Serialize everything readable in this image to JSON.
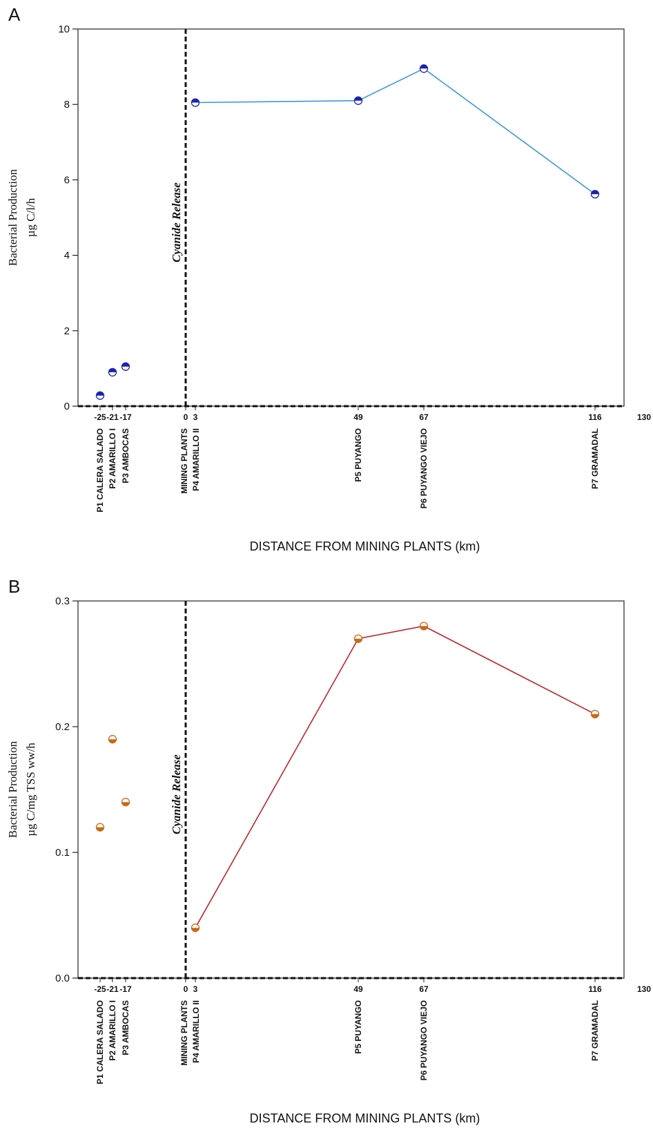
{
  "chart_data": [
    {
      "type": "line",
      "panel": "A",
      "ylabel": [
        "Bacterial Production",
        "µg C/l/h"
      ],
      "xlabel": "DISTANCE FROM MINING PLANTS (km)",
      "xlim": [
        -28,
        130
      ],
      "ylim": [
        0,
        10
      ],
      "xticks": [
        -25,
        -21,
        -17,
        0,
        3,
        49,
        67,
        116,
        130
      ],
      "xtick_labels": [
        "-25",
        "-21",
        "-17",
        "0",
        "3",
        "49",
        "67",
        "116",
        "130"
      ],
      "yticks": [
        0,
        2,
        4,
        6,
        8,
        10
      ],
      "ytick_labels": [
        "0",
        "2",
        "4",
        "6",
        "8",
        "10"
      ],
      "series": [
        {
          "points": [
            [
              -25,
              0.28
            ],
            [
              -21,
              0.9
            ],
            [
              -17,
              1.05
            ]
          ],
          "connected": false
        },
        {
          "points": [
            [
              3,
              8.05
            ],
            [
              49,
              8.1
            ],
            [
              67,
              8.95
            ],
            [
              116,
              5.62
            ]
          ],
          "connected": true
        }
      ],
      "colors": {
        "line": "#3a9ad9",
        "marker": "#1c23b0"
      },
      "annotation": "Cyanide Release",
      "vline_x": 0,
      "hline_y": 0
    },
    {
      "type": "line",
      "panel": "B",
      "ylabel": [
        "Bacterial Production",
        "µg C/mg TSS ww/h"
      ],
      "xlabel": "DISTANCE FROM MINING PLANTS (km)",
      "xlim": [
        -28,
        130
      ],
      "ylim": [
        0,
        0.3
      ],
      "xticks": [
        -25,
        -21,
        -17,
        0,
        3,
        49,
        67,
        116,
        130
      ],
      "xtick_labels": [
        "-25",
        "-21",
        "-17",
        "0",
        "3",
        "49",
        "67",
        "116",
        "130"
      ],
      "yticks": [
        0,
        0.1,
        0.2,
        0.3
      ],
      "ytick_labels": [
        "0.0",
        "0.1",
        "0.2",
        "0.3"
      ],
      "series": [
        {
          "points": [
            [
              -25,
              0.12
            ],
            [
              -21,
              0.19
            ],
            [
              -17,
              0.14
            ]
          ],
          "connected": false
        },
        {
          "points": [
            [
              3,
              0.04
            ],
            [
              49,
              0.27
            ],
            [
              67,
              0.28
            ],
            [
              116,
              0.21
            ]
          ],
          "connected": true
        }
      ],
      "colors": {
        "line": "#c0232e",
        "marker": "#c86a14"
      },
      "annotation": "Cyanide Release",
      "vline_x": 0,
      "hline_y": 0
    }
  ],
  "categories": [
    {
      "x": -25,
      "label": "P1 CALERA SALADO"
    },
    {
      "x": -21,
      "label": "P2 AMARILLO I"
    },
    {
      "x": -17,
      "label": "P3 AMBOCAS"
    },
    {
      "x": 0,
      "label": "MINING PLANTS"
    },
    {
      "x": 3,
      "label": "P4 AMARILLO II"
    },
    {
      "x": 49,
      "label": "P5 PUYANGO"
    },
    {
      "x": 67,
      "label": "P6 PUYANGO VIEJO"
    },
    {
      "x": 116,
      "label": "P7 GRAMADAL"
    }
  ]
}
